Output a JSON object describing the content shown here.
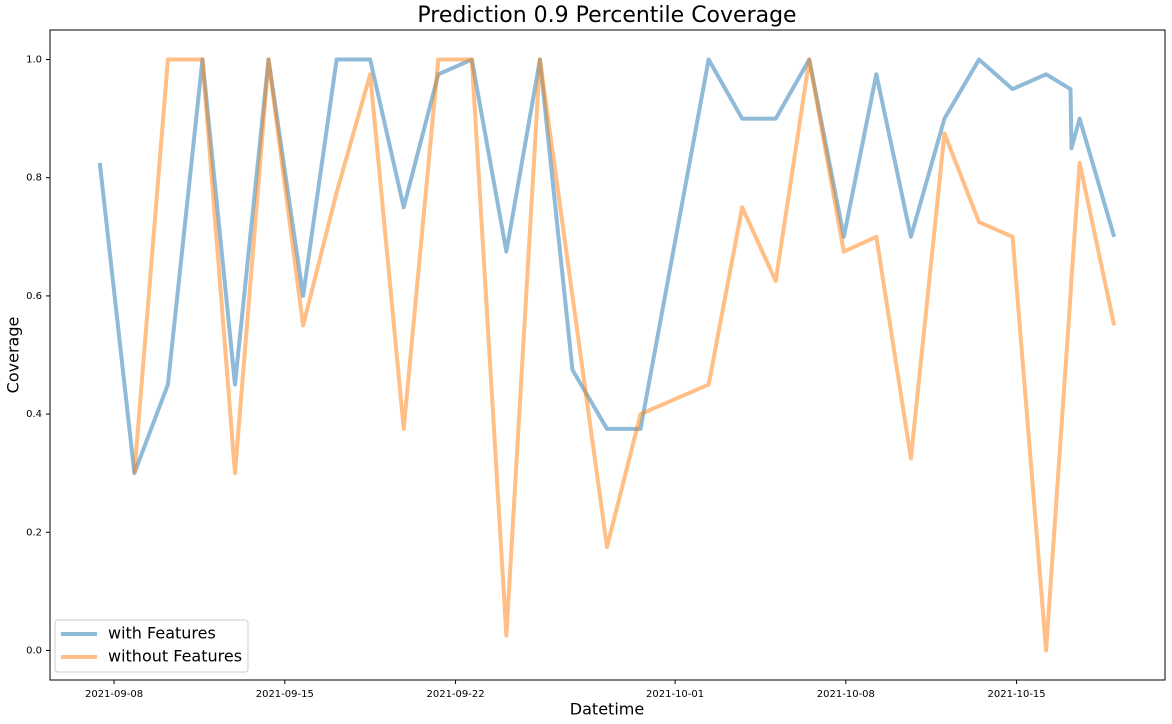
{
  "chart_data": {
    "type": "line",
    "title": "Prediction 0.9 Percentile Coverage",
    "x_label": "Datetime",
    "y_label": "Coverage",
    "x": [
      "2021-09-07T10:00",
      "2021-09-08T20:00",
      "2021-09-10T05:00",
      "2021-09-11T15:00",
      "2021-09-12T23:00",
      "2021-09-14T08:00",
      "2021-09-15T18:00",
      "2021-09-17T03:00",
      "2021-09-18T12:00",
      "2021-09-19T21:00",
      "2021-09-21T07:00",
      "2021-09-22T16:00",
      "2021-09-24T02:00",
      "2021-09-25T11:00",
      "2021-09-26T19:00",
      "2021-09-28T05:00",
      "2021-09-29T14:00",
      "2021-10-02T09:00",
      "2021-10-03T18:00",
      "2021-10-05T03:00",
      "2021-10-06T12:00",
      "2021-10-07T22:00",
      "2021-10-09T06:00",
      "2021-10-10T16:00",
      "2021-10-12T01:00",
      "2021-10-13T11:00",
      "2021-10-14T20:00",
      "2021-10-16T05:00",
      "2021-10-17T05:00",
      "2021-10-17T06:00",
      "2021-10-17T14:00",
      "2021-10-19T00:00"
    ],
    "series": [
      {
        "name": "with Features",
        "color": "#1f77b4",
        "values": [
          0.825,
          0.3,
          0.45,
          1.0,
          0.45,
          1.0,
          0.6,
          1.0,
          1.0,
          0.75,
          0.975,
          1.0,
          0.675,
          1.0,
          0.475,
          0.375,
          0.375,
          1.0,
          0.9,
          0.9,
          1.0,
          0.7,
          0.975,
          0.7,
          0.9,
          1.0,
          0.95,
          0.975,
          0.95,
          0.85,
          0.9,
          0.7
        ]
      },
      {
        "name": "without Features",
        "color": "#ff7f0e",
        "values": [
          null,
          0.3,
          1.0,
          1.0,
          0.3,
          1.0,
          0.55,
          0.775,
          0.975,
          0.375,
          1.0,
          1.0,
          0.025,
          1.0,
          0.6,
          0.175,
          0.4,
          0.45,
          0.75,
          0.625,
          1.0,
          0.675,
          0.7,
          0.325,
          0.875,
          0.725,
          0.7,
          0.0,
          0.6,
          0.63,
          0.825,
          0.55
        ]
      }
    ],
    "xlim": [
      "2021-09-05T09:00",
      "2021-10-21T02:00"
    ],
    "xticks": [
      "2021-09-08",
      "2021-09-15",
      "2021-09-22",
      "2021-10-01",
      "2021-10-08",
      "2021-10-15"
    ],
    "ylim": [
      -0.05,
      1.05
    ],
    "yticks": [
      {
        "value": 0,
        "label": "0.0"
      },
      0.2,
      0.4,
      0.6,
      0.8,
      {
        "value": 1,
        "label": "1.0"
      }
    ],
    "grid": false,
    "legend": "lower left"
  }
}
